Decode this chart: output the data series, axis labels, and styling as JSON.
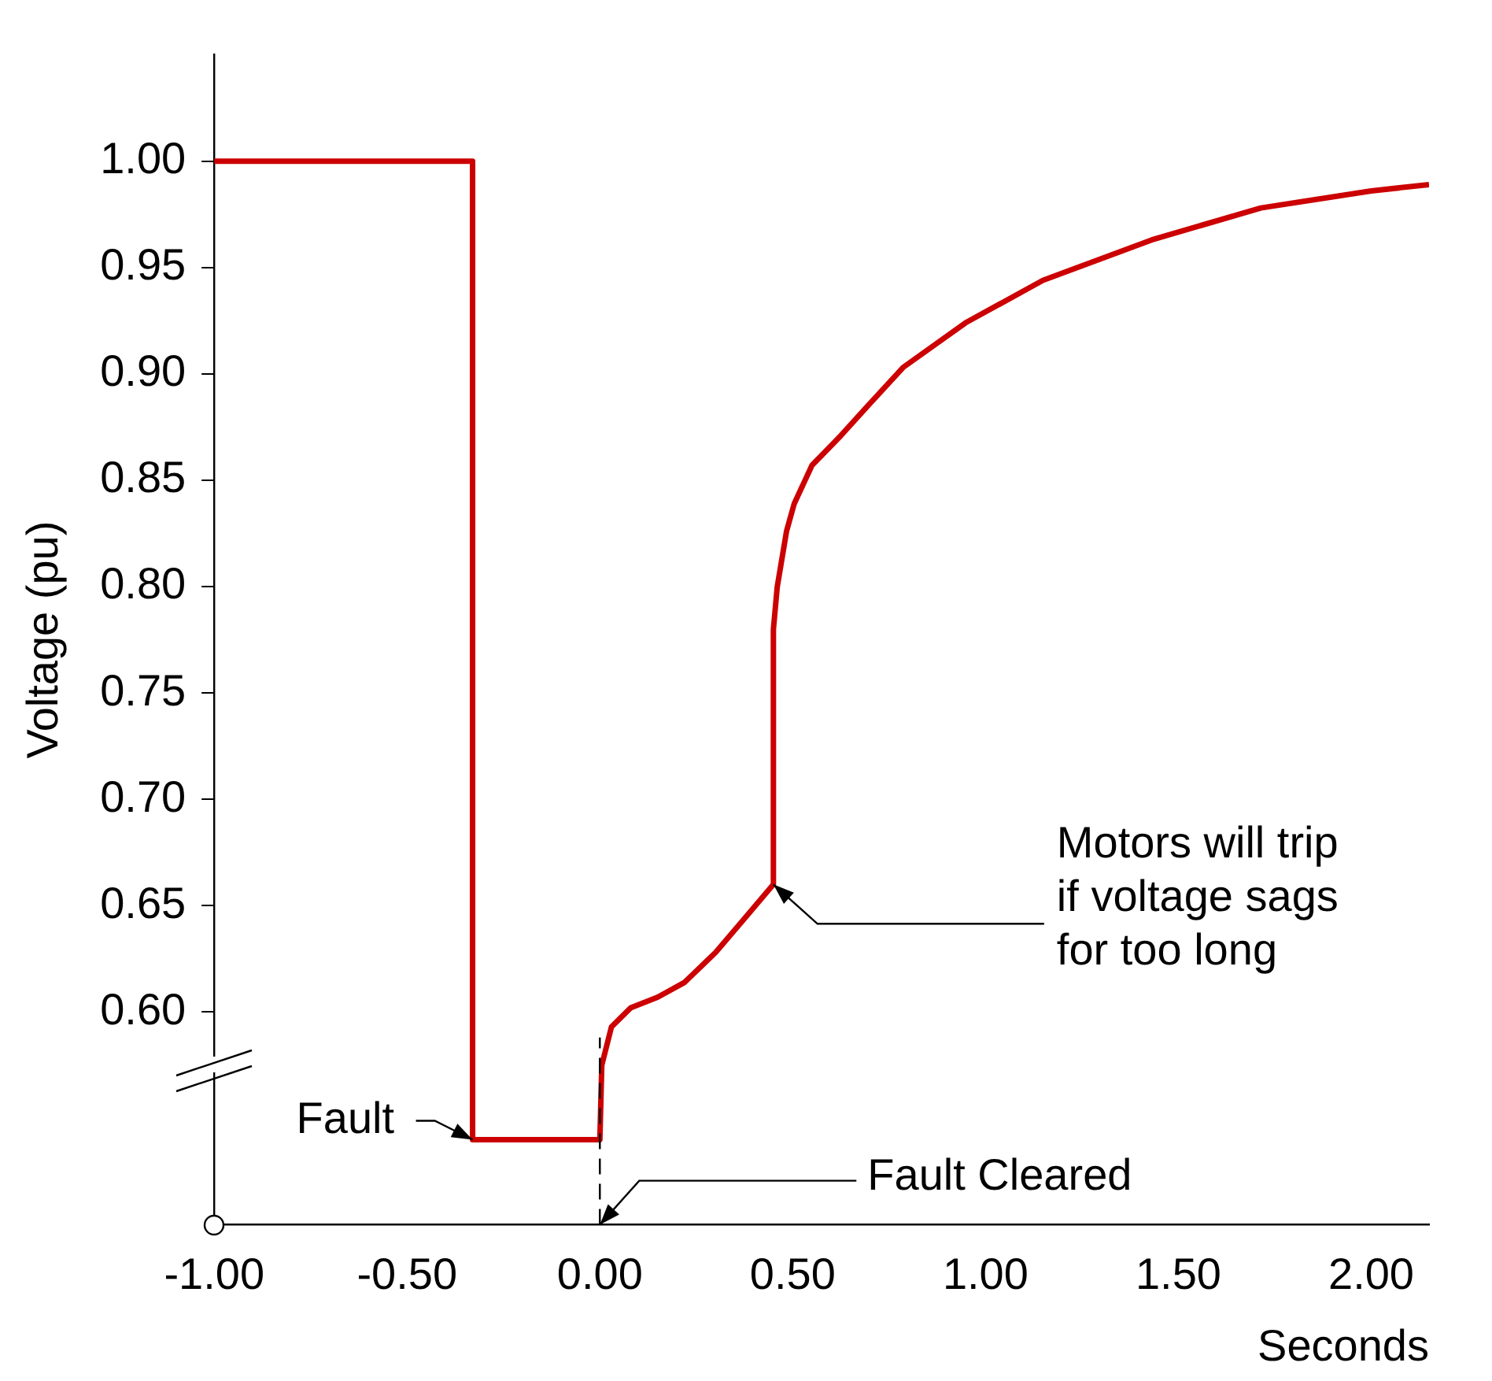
{
  "chart_data": {
    "type": "line",
    "xlabel": "Seconds",
    "ylabel": "Voltage (pu)",
    "x": [
      -1,
      -0.33,
      -0.33,
      0,
      0.005,
      0.03,
      0.08,
      0.15,
      0.22,
      0.3,
      0.38,
      0.45,
      0.45,
      0.46,
      0.484,
      0.504,
      0.55,
      0.625,
      0.7,
      0.786,
      0.948,
      1.149,
      1.431,
      1.714,
      2.0,
      2.15
    ],
    "series": [
      {
        "color": "#cc0000",
        "values": [
          1.0,
          1.0,
          0.54,
          0.54,
          0.575,
          0.593,
          0.602,
          0.607,
          0.614,
          0.628,
          0.645,
          0.66,
          0.78,
          0.8,
          0.826,
          0.839,
          0.857,
          0.871,
          0.886,
          0.903,
          0.924,
          0.944,
          0.963,
          0.978,
          0.986,
          0.989
        ]
      }
    ],
    "xlim": [
      -1,
      2.15
    ],
    "xticks": [
      {
        "value": -1,
        "label": "-1.00"
      },
      {
        "value": -0.5,
        "label": "-0.50"
      },
      {
        "value": 0,
        "label": "0.00"
      },
      {
        "value": 0.5,
        "label": "0.50"
      },
      {
        "value": 1,
        "label": "1.00"
      },
      {
        "value": 1.5,
        "label": "1.50"
      },
      {
        "value": 2,
        "label": "2.00"
      }
    ],
    "ylim": [
      0.5,
      1.05
    ],
    "yticks": [
      {
        "value": 0.6,
        "label": "0.60"
      },
      {
        "value": 0.65,
        "label": "0.65"
      },
      {
        "value": 0.7,
        "label": "0.70"
      },
      {
        "value": 0.75,
        "label": "0.75"
      },
      {
        "value": 0.8,
        "label": "0.80"
      },
      {
        "value": 0.85,
        "label": "0.85"
      },
      {
        "value": 0.9,
        "label": "0.90"
      },
      {
        "value": 0.95,
        "label": "0.95"
      },
      {
        "value": 1.0,
        "label": "1.00"
      }
    ],
    "ref_lines": [
      {
        "axis": "x",
        "value": 0,
        "line_style": "dashed",
        "color": "#000000"
      }
    ],
    "annotations": [
      {
        "text": "Fault",
        "x": -0.33,
        "y": 0.54
      },
      {
        "text": "Fault Cleared",
        "x": 0,
        "y": 0.5
      },
      {
        "text": "Motors will trip\nif voltage sags\nfor too long",
        "x": 0.45,
        "y": 0.66
      }
    ],
    "grid": false,
    "legend": false,
    "marker": "none",
    "line_style": "solid"
  }
}
